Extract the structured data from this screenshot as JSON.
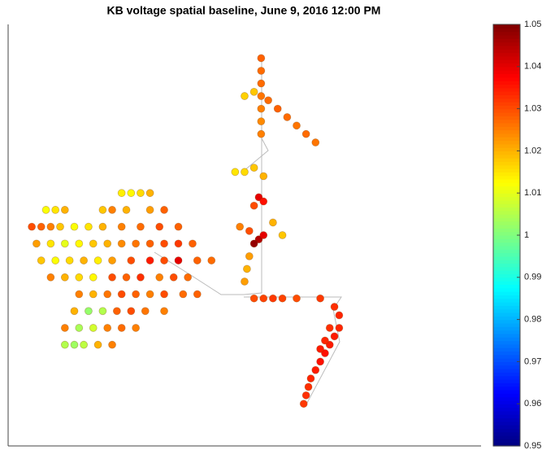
{
  "chart_data": {
    "type": "scatter",
    "title": "KB voltage spatial baseline, June 9, 2016 12:00 PM",
    "xlim": [
      0,
      100
    ],
    "ylim": [
      0,
      100
    ],
    "x": [
      53.5,
      53.5,
      53.5,
      53.5,
      53.5,
      53.5,
      53.5,
      55,
      57,
      59,
      61,
      63,
      65,
      52,
      50,
      48,
      50,
      52,
      54,
      53,
      54,
      52,
      49,
      51,
      53,
      52,
      54,
      56,
      58,
      51,
      50.5,
      50,
      52,
      54,
      56,
      58,
      61,
      66,
      69,
      70,
      70,
      69,
      68,
      67,
      66,
      65,
      64,
      63.5,
      63,
      62.5,
      68,
      67,
      66,
      24,
      26,
      28,
      30,
      8,
      10,
      12,
      20,
      22,
      25,
      30,
      33,
      5,
      7,
      9,
      11,
      14,
      17,
      20,
      24,
      28,
      32,
      36,
      6,
      9,
      12,
      15,
      18,
      21,
      24,
      27,
      30,
      33,
      36,
      39,
      7,
      10,
      13,
      16,
      19,
      22,
      26,
      30,
      33,
      36,
      40,
      43,
      9,
      12,
      15,
      18,
      22,
      25,
      28,
      32,
      35,
      38,
      15,
      18,
      21,
      24,
      27,
      30,
      33,
      37,
      40,
      14,
      17,
      20,
      23,
      26,
      29,
      33,
      12,
      15,
      18,
      21,
      24,
      27,
      12,
      14,
      16,
      19,
      22
    ],
    "y": [
      92,
      89,
      86,
      83,
      80,
      77,
      74,
      82,
      80,
      78,
      76,
      74,
      72,
      84,
      83,
      65,
      65,
      66,
      64,
      59,
      58,
      57,
      52,
      51,
      49,
      48,
      50,
      53,
      50,
      45,
      42,
      39,
      35,
      35,
      35,
      35,
      35,
      35,
      33,
      31,
      28,
      26,
      24,
      22,
      20,
      18,
      16,
      14,
      12,
      10,
      28,
      25,
      23,
      60,
      60,
      60,
      60,
      56,
      56,
      56,
      56,
      56,
      56,
      56,
      56,
      52,
      52,
      52,
      52,
      52,
      52,
      52,
      52,
      52,
      52,
      52,
      48,
      48,
      48,
      48,
      48,
      48,
      48,
      48,
      48,
      48,
      48,
      48,
      44,
      44,
      44,
      44,
      44,
      44,
      44,
      44,
      44,
      44,
      44,
      44,
      40,
      40,
      40,
      40,
      40,
      40,
      40,
      40,
      40,
      40,
      36,
      36,
      36,
      36,
      36,
      36,
      36,
      36,
      36,
      32,
      32,
      32,
      32,
      32,
      32,
      32,
      28,
      28,
      28,
      28,
      28,
      28,
      24,
      24,
      24,
      24,
      24
    ],
    "values": [
      1.028,
      1.027,
      1.027,
      1.026,
      1.025,
      1.024,
      1.025,
      1.027,
      1.028,
      1.027,
      1.026,
      1.027,
      1.026,
      1.018,
      1.017,
      1.015,
      1.016,
      1.018,
      1.02,
      1.04,
      1.036,
      1.03,
      1.025,
      1.03,
      1.045,
      1.048,
      1.04,
      1.02,
      1.018,
      1.022,
      1.02,
      1.022,
      1.03,
      1.031,
      1.032,
      1.031,
      1.03,
      1.032,
      1.033,
      1.034,
      1.034,
      1.035,
      1.035,
      1.036,
      1.036,
      1.035,
      1.034,
      1.033,
      1.033,
      1.032,
      1.033,
      1.034,
      1.035,
      1.014,
      1.013,
      1.016,
      1.02,
      1.012,
      1.015,
      1.02,
      1.018,
      1.025,
      1.02,
      1.022,
      1.028,
      1.03,
      1.028,
      1.025,
      1.018,
      1.012,
      1.015,
      1.02,
      1.025,
      1.027,
      1.03,
      1.028,
      1.022,
      1.015,
      1.01,
      1.013,
      1.018,
      1.02,
      1.024,
      1.026,
      1.028,
      1.03,
      1.032,
      1.028,
      1.018,
      1.012,
      1.016,
      1.02,
      1.014,
      1.022,
      1.03,
      1.035,
      1.03,
      1.04,
      1.028,
      1.027,
      1.025,
      1.02,
      1.016,
      1.013,
      1.03,
      1.028,
      1.033,
      1.025,
      1.03,
      1.027,
      1.025,
      1.02,
      1.026,
      1.03,
      1.028,
      1.025,
      1.03,
      1.027,
      1.028,
      1.02,
      1.002,
      1.005,
      1.028,
      1.03,
      1.026,
      1.025,
      1.025,
      1.004,
      1.008,
      1.025,
      1.027,
      1.025,
      1.005,
      1.003,
      1.006,
      1.02,
      1.025
    ],
    "clim": [
      0.95,
      1.05
    ],
    "cticks": [
      0.95,
      0.96,
      0.97,
      0.98,
      0.99,
      1,
      1.01,
      1.02,
      1.03,
      1.04,
      1.05
    ],
    "colormap": "jet"
  }
}
